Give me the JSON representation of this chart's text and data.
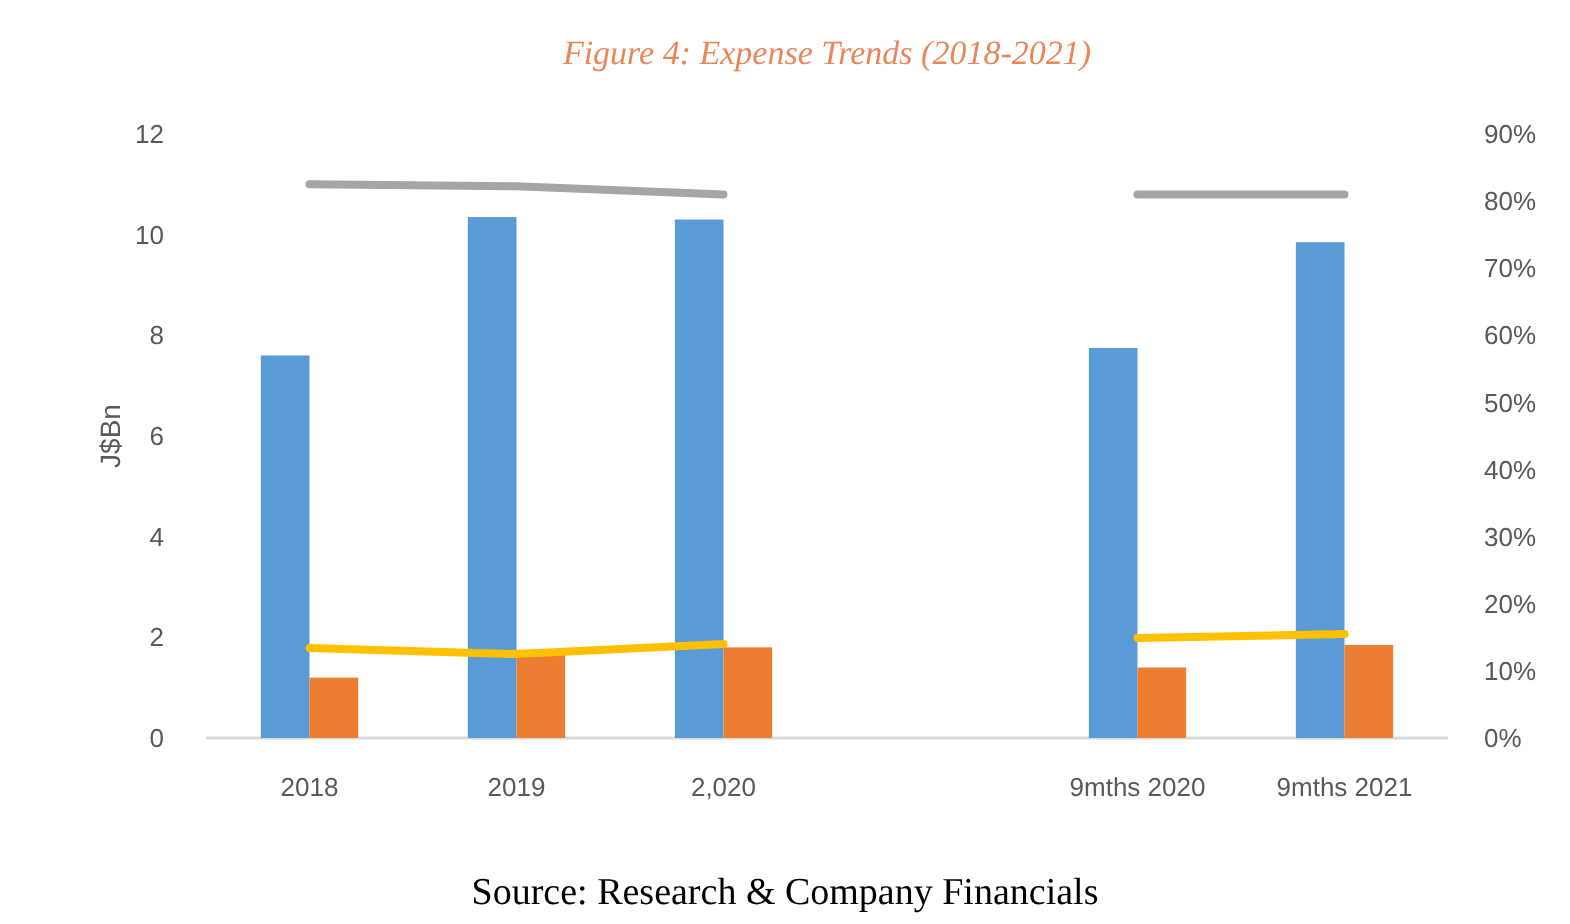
{
  "chart_data": {
    "type": "bar",
    "title": "Figure 4: Expense Trends (2018-2021)",
    "ylabel": "J$Bn",
    "categories": [
      "2018",
      "2019",
      "2,020",
      null,
      "9mths 2020",
      "9mths 2021"
    ],
    "series": [
      {
        "color": "#5b9bd5",
        "values": [
          7.6,
          10.35,
          10.3,
          null,
          7.75,
          9.85
        ]
      },
      {
        "color": "#ed7d31",
        "values": [
          1.2,
          1.75,
          1.8,
          null,
          1.4,
          1.85
        ]
      },
      {
        "type": "line",
        "axis": "y2",
        "color": "#a5a5a5",
        "values": [
          82.5,
          82.2,
          81,
          null,
          81,
          81
        ]
      },
      {
        "type": "line",
        "axis": "y2",
        "color": "#ffc000",
        "values": [
          13.4,
          12.5,
          14,
          null,
          14.9,
          15.5
        ]
      }
    ],
    "ylim": [
      0,
      12
    ],
    "yticks": [
      0,
      2,
      4,
      6,
      8,
      10,
      12
    ],
    "y2lim": [
      0,
      90
    ],
    "y2ticks": [
      {
        "value": 0,
        "label": "0%"
      },
      {
        "value": 10,
        "label": "10%"
      },
      {
        "value": 20,
        "label": "20%"
      },
      {
        "value": 30,
        "label": "30%"
      },
      {
        "value": 40,
        "label": "40%"
      },
      {
        "value": 50,
        "label": "50%"
      },
      {
        "value": 60,
        "label": "60%"
      },
      {
        "value": 70,
        "label": "70%"
      },
      {
        "value": 80,
        "label": "80%"
      },
      {
        "value": 90,
        "label": "90%"
      }
    ],
    "grid": false,
    "annotations": [
      "Source: Research & Company Financials"
    ]
  }
}
